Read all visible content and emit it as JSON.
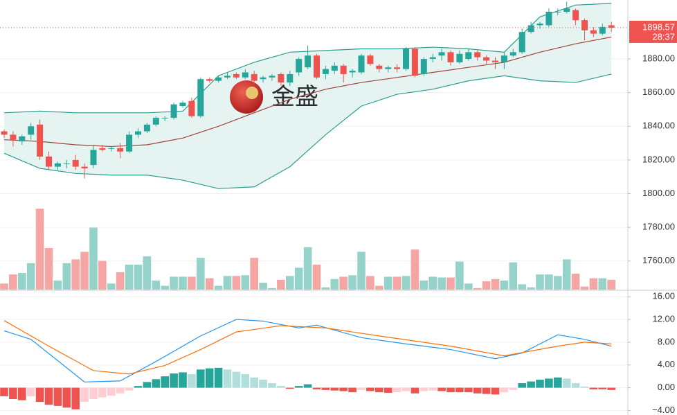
{
  "chart_data": [
    {
      "type": "candlestick",
      "watermark": "金盛",
      "countdown": "28:37",
      "up_color": "#26a69a",
      "down_color": "#ef5350",
      "up_volume_color": "#95d2c9",
      "down_volume_color": "#f5a5a3",
      "open": [
        1837,
        1835,
        1831,
        1835,
        1841,
        1822,
        1816,
        1818,
        1820,
        1816,
        1817,
        1827,
        1827,
        1827,
        1825,
        1835,
        1837,
        1841,
        1845,
        1845,
        1852,
        1855,
        1846,
        1868,
        1867,
        1869,
        1871,
        1869,
        1871,
        1868,
        1869,
        1871,
        1866,
        1872,
        1875,
        1882,
        1871,
        1873,
        1876,
        1872,
        1872,
        1882,
        1876,
        1874,
        1875,
        1874,
        1886,
        1871,
        1880,
        1882,
        1884,
        1878,
        1880,
        1884,
        1881,
        1879,
        1878,
        1882,
        1884,
        1896,
        1900,
        1900,
        1908,
        1908,
        1909,
        1903,
        1897,
        1895,
        1900
      ],
      "high": [
        1838,
        1837,
        1835,
        1842,
        1844,
        1825,
        1819,
        1820,
        1823,
        1818,
        1829,
        1829,
        1828,
        1830,
        1837,
        1839,
        1842,
        1846,
        1846,
        1854,
        1855,
        1857,
        1869,
        1869,
        1870,
        1872,
        1872,
        1874,
        1873,
        1870,
        1871,
        1872,
        1873,
        1881,
        1888,
        1883,
        1876,
        1878,
        1877,
        1874,
        1883,
        1883,
        1877,
        1876,
        1877,
        1887,
        1887,
        1881,
        1883,
        1886,
        1885,
        1885,
        1886,
        1885,
        1882,
        1881,
        1884,
        1886,
        1898,
        1902,
        1902,
        1910,
        1910,
        1914,
        1910,
        1904,
        1899,
        1901,
        1902
      ],
      "low": [
        1833,
        1828,
        1829,
        1832,
        1820,
        1814,
        1814,
        1815,
        1814,
        1809,
        1815,
        1825,
        1825,
        1821,
        1824,
        1833,
        1836,
        1840,
        1843,
        1844,
        1851,
        1845,
        1845,
        1866,
        1866,
        1868,
        1868,
        1868,
        1865,
        1866,
        1867,
        1864,
        1864,
        1870,
        1874,
        1868,
        1868,
        1871,
        1866,
        1869,
        1871,
        1876,
        1872,
        1872,
        1872,
        1873,
        1869,
        1870,
        1878,
        1879,
        1876,
        1877,
        1879,
        1879,
        1877,
        1874,
        1874,
        1881,
        1883,
        1895,
        1898,
        1899,
        1906,
        1907,
        1900,
        1891,
        1893,
        1894,
        1896
      ],
      "close": [
        1835,
        1832,
        1834,
        1840,
        1822,
        1816,
        1818,
        1818,
        1816,
        1815,
        1826,
        1826,
        1827,
        1825,
        1835,
        1837,
        1841,
        1845,
        1845,
        1853,
        1854,
        1846,
        1868,
        1867,
        1869,
        1870,
        1869,
        1872,
        1867,
        1869,
        1870,
        1866,
        1871,
        1880,
        1882,
        1869,
        1874,
        1876,
        1871,
        1873,
        1882,
        1877,
        1874,
        1875,
        1874,
        1886,
        1870,
        1880,
        1881,
        1884,
        1878,
        1883,
        1884,
        1881,
        1879,
        1878,
        1882,
        1884,
        1896,
        1900,
        1901,
        1908,
        1908,
        1910,
        1903,
        1897,
        1895,
        1899,
        1898.57
      ],
      "volume": [
        8,
        20,
        22,
        35,
        107,
        55,
        12,
        35,
        40,
        50,
        82,
        38,
        8,
        23,
        33,
        33,
        44,
        12,
        5,
        17,
        17,
        17,
        42,
        15,
        5,
        18,
        18,
        19,
        42,
        9,
        2,
        13,
        18,
        29,
        56,
        33,
        3,
        14,
        17,
        19,
        50,
        18,
        5,
        17,
        17,
        18,
        53,
        12,
        17,
        16,
        16,
        37,
        8,
        2,
        11,
        14,
        12,
        36,
        7,
        3,
        20,
        20,
        18,
        40,
        21,
        4,
        15,
        15,
        13
      ],
      "vlim": [
        0,
        110
      ],
      "bollinger": {
        "x": [
          0,
          4,
          8,
          12,
          16,
          20,
          24,
          28,
          32,
          36,
          40,
          44,
          48,
          52,
          56,
          60,
          64,
          68
        ],
        "upper": [
          1848,
          1849,
          1848,
          1848,
          1848,
          1849,
          1870,
          1878,
          1884,
          1885,
          1886,
          1886,
          1887,
          1886,
          1884,
          1905,
          1912,
          1913
        ],
        "middle": [
          1832,
          1831,
          1829,
          1828,
          1829,
          1833,
          1840,
          1848,
          1856,
          1862,
          1866,
          1869,
          1872,
          1875,
          1878,
          1884,
          1889,
          1893
        ],
        "lower": [
          1824,
          1815,
          1812,
          1811,
          1811,
          1808,
          1803,
          1804,
          1816,
          1835,
          1852,
          1859,
          1862,
          1867,
          1870,
          1867,
          1866,
          1871
        ],
        "band_color": "#2a9d8f",
        "middle_color": "#a0413c",
        "fill": "#e6f4f1"
      },
      "ylim": [
        1743,
        1915
      ],
      "yticks": [
        {
          "value": 1760,
          "label": "1760.00"
        },
        {
          "value": 1780,
          "label": "1780.00"
        },
        {
          "value": 1800,
          "label": "1800.00"
        },
        {
          "value": 1820,
          "label": "1820.00"
        },
        {
          "value": 1840,
          "label": "1840.00"
        },
        {
          "value": 1860,
          "label": "1860.00"
        },
        {
          "value": 1880,
          "label": "1880.00"
        }
      ],
      "grid": true
    },
    {
      "type": "macd",
      "dif": {
        "x": [
          0,
          3,
          9,
          13,
          17,
          22,
          26,
          29,
          33,
          35,
          40,
          45,
          50,
          55,
          58,
          62,
          65,
          68
        ],
        "values": [
          10,
          8.5,
          1,
          1.2,
          4.6,
          9.1,
          12,
          11.7,
          10.5,
          11,
          8.8,
          7.7,
          6.7,
          5.1,
          6.1,
          9.3,
          8.5,
          7.3
        ],
        "color": "#2196f3"
      },
      "dea": {
        "x": [
          0,
          5,
          10,
          14,
          18,
          22,
          26,
          31,
          36,
          42,
          50,
          56,
          62,
          65,
          68
        ],
        "values": [
          11.8,
          7.3,
          3,
          2.4,
          3.9,
          6.7,
          9.8,
          10.9,
          10.5,
          9.1,
          7.3,
          5.6,
          7.3,
          8,
          7.7
        ],
        "color": "#ff6d00"
      },
      "histogram": [
        -1.5,
        -2,
        -2.2,
        -1.5,
        -2.5,
        -3,
        -3.2,
        -3.5,
        -3.8,
        -2.5,
        -2,
        -1.7,
        -1.4,
        -1,
        -0.5,
        0.3,
        1,
        1.5,
        2,
        2.5,
        2.7,
        2.4,
        3.2,
        3.4,
        3.5,
        3.2,
        2.8,
        2.4,
        1.8,
        1.4,
        0.8,
        0.3,
        -0.2,
        0.3,
        0.6,
        -0.3,
        -0.4,
        -0.5,
        -0.6,
        -0.8,
        -0.4,
        -0.6,
        -0.8,
        -0.9,
        -0.8,
        -0.6,
        -1,
        -0.6,
        -0.5,
        -0.6,
        -0.8,
        -0.8,
        -0.8,
        -1,
        -1.1,
        -1.2,
        -0.8,
        -0.4,
        0.8,
        1.1,
        1.4,
        1.6,
        1.8,
        1.6,
        0.8,
        0.2,
        -0.3,
        -0.3,
        -0.4
      ],
      "colors": {
        "pos_strong": "#26a69a",
        "pos_weak": "#b2dfdb",
        "neg_strong": "#ef5350",
        "neg_weak": "#ffcdd2"
      },
      "ylim": [
        -4.8,
        17
      ],
      "yticks": [
        {
          "value": -4,
          "label": "−4.00"
        },
        {
          "value": 0,
          "label": "0.00"
        },
        {
          "value": 4,
          "label": "4.00"
        },
        {
          "value": 8,
          "label": "8.00"
        },
        {
          "value": 12,
          "label": "12.00"
        },
        {
          "value": 16,
          "label": "16.00"
        }
      ],
      "grid": true
    }
  ]
}
